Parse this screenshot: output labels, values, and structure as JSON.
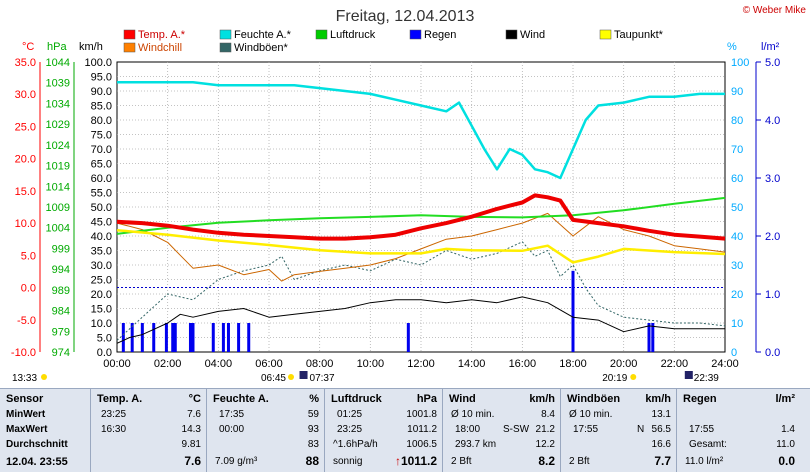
{
  "chart_data": {
    "type": "line",
    "title": "Freitag, 12.04.2013",
    "copyright": "© Weber Mike",
    "x_labels": [
      "00:00",
      "02:00",
      "04:00",
      "06:00",
      "08:00",
      "10:00",
      "12:00",
      "14:00",
      "16:00",
      "18:00",
      "20:00",
      "22:00",
      "24:00"
    ],
    "x_range": [
      0,
      24
    ],
    "axes": {
      "temp": {
        "unit": "°C",
        "range": [
          -10,
          35
        ],
        "ticks": [
          "35.0",
          "30.0",
          "25.0",
          "20.0",
          "15.0",
          "10.0",
          "5.0",
          "0.0",
          "-5.0",
          "-10.0"
        ]
      },
      "pressure": {
        "unit": "hPa",
        "range": [
          974,
          1044
        ],
        "ticks": [
          "1044",
          "1039",
          "1034",
          "1029",
          "1024",
          "1019",
          "1014",
          "1009",
          "1004",
          "999",
          "994",
          "989",
          "984",
          "979",
          "974"
        ]
      },
      "wind": {
        "unit": "km/h",
        "range": [
          0,
          100
        ],
        "ticks": [
          "100.0",
          "95.0",
          "90.0",
          "85.0",
          "80.0",
          "75.0",
          "70.0",
          "65.0",
          "60.0",
          "55.0",
          "50.0",
          "45.0",
          "40.0",
          "35.0",
          "30.0",
          "25.0",
          "20.0",
          "15.0",
          "10.0",
          "5.0",
          "0.0"
        ]
      },
      "humidity": {
        "unit": "%",
        "range": [
          0,
          100
        ],
        "ticks": [
          "100",
          "90",
          "80",
          "70",
          "60",
          "50",
          "40",
          "30",
          "20",
          "10",
          "0"
        ]
      },
      "rain": {
        "unit": "l/m²",
        "range": [
          0,
          5
        ],
        "ticks": [
          "5.0",
          "4.0",
          "3.0",
          "2.0",
          "1.0",
          "0.0"
        ]
      }
    },
    "legend": [
      {
        "name": "Temp. A.*",
        "color": "#ff0000"
      },
      {
        "name": "Feuchte A.*",
        "color": "#00e0e0"
      },
      {
        "name": "Luftdruck",
        "color": "#00cc00"
      },
      {
        "name": "Regen",
        "color": "#0000ff"
      },
      {
        "name": "Wind",
        "color": "#000000"
      },
      {
        "name": "Taupunkt*",
        "color": "#ffff00"
      },
      {
        "name": "Windchill",
        "color": "#ff8000"
      },
      {
        "name": "Windböen*",
        "color": "#336666"
      }
    ],
    "series": {
      "temperature": {
        "name": "Temp. A.*",
        "axis": "temp",
        "x": [
          0,
          1,
          2,
          3,
          4,
          5,
          6,
          7,
          8,
          9,
          10,
          11,
          12,
          13,
          14,
          15,
          16,
          16.5,
          17,
          17.5,
          18,
          19,
          20,
          21,
          22,
          23,
          24
        ],
        "y": [
          10.2,
          10.0,
          9.6,
          9.0,
          8.5,
          8.2,
          8.0,
          7.8,
          7.6,
          7.6,
          7.8,
          8.2,
          9.2,
          10.0,
          11.0,
          12.2,
          13.2,
          14.3,
          14.0,
          13.5,
          10.5,
          10.0,
          9.5,
          8.8,
          8.2,
          7.9,
          7.6
        ]
      },
      "humidity": {
        "name": "Feuchte A.*",
        "axis": "humidity",
        "x": [
          0,
          1,
          2,
          3,
          4,
          5,
          6,
          7,
          8,
          9,
          10,
          11,
          12,
          13,
          13.5,
          14,
          14.5,
          15,
          15.5,
          16,
          16.5,
          17,
          17.5,
          18,
          18.5,
          19,
          20,
          21,
          22,
          23,
          24
        ],
        "y": [
          93,
          93,
          93,
          93,
          92,
          92,
          92,
          92,
          91,
          90,
          89,
          87,
          85,
          83,
          86,
          78,
          70,
          63,
          70,
          68,
          63,
          62,
          60,
          70,
          80,
          85,
          86,
          88,
          88,
          89,
          89
        ]
      },
      "pressure": {
        "name": "Luftdruck",
        "axis": "pressure",
        "x": [
          0,
          2,
          4,
          6,
          8,
          10,
          12,
          14,
          16,
          18,
          20,
          22,
          24
        ],
        "y": [
          1002.5,
          1004.0,
          1005.2,
          1005.8,
          1006.3,
          1006.6,
          1007.0,
          1006.6,
          1006.5,
          1007.0,
          1008.2,
          1009.8,
          1011.2
        ]
      },
      "dewpoint": {
        "name": "Taupunkt*",
        "axis": "temp",
        "x": [
          0,
          2,
          4,
          6,
          8,
          10,
          12,
          13,
          14,
          16,
          17,
          18,
          19,
          20,
          22,
          24
        ],
        "y": [
          8.9,
          8.2,
          7.3,
          6.6,
          5.8,
          5.3,
          5.3,
          6.0,
          5.8,
          5.7,
          6.5,
          3.9,
          4.8,
          6.0,
          5.5,
          5.2
        ]
      },
      "windchill": {
        "name": "Windchill",
        "axis": "temp",
        "x": [
          0,
          1,
          1.5,
          2,
          2.5,
          3,
          4,
          5,
          6,
          6.5,
          7,
          8,
          9,
          10,
          11,
          12,
          13,
          14,
          15,
          16,
          17,
          18,
          19,
          20,
          21,
          22,
          23,
          24
        ],
        "y": [
          10.0,
          9.0,
          8.0,
          7.0,
          5.0,
          3.0,
          3.5,
          2.0,
          2.8,
          1.0,
          2.0,
          2.5,
          3.0,
          3.5,
          4.5,
          6.0,
          7.5,
          8.0,
          9.0,
          10.0,
          11.5,
          8.0,
          11.0,
          9.0,
          8.0,
          6.5,
          6.0,
          5.5
        ]
      },
      "wind": {
        "name": "Wind",
        "axis": "wind",
        "x": [
          0,
          0.5,
          1,
          1.5,
          2,
          2.5,
          3,
          4,
          5,
          6,
          7,
          8,
          9,
          10,
          11,
          12,
          13,
          14,
          15,
          16,
          17,
          18,
          19,
          20,
          21,
          22,
          23,
          24
        ],
        "y": [
          3,
          5,
          6,
          8,
          10,
          13,
          12,
          14,
          15,
          12,
          13,
          14,
          15,
          17,
          18,
          18,
          17,
          18,
          17,
          19,
          17,
          12,
          11,
          7,
          9,
          8,
          8,
          8
        ]
      },
      "gusts": {
        "name": "Windböen*",
        "axis": "wind",
        "x": [
          0,
          1,
          2,
          3,
          4,
          5,
          6,
          6.5,
          7,
          8,
          9,
          10,
          11,
          12,
          13,
          14,
          15,
          16,
          16.5,
          17,
          17.5,
          18,
          18.5,
          19,
          20,
          21,
          22,
          23,
          24
        ],
        "y": [
          4,
          12,
          20,
          18,
          25,
          28,
          30,
          33,
          25,
          28,
          30,
          28,
          32,
          30,
          35,
          32,
          34,
          38,
          33,
          35,
          26,
          30,
          22,
          16,
          12,
          11,
          10,
          10,
          9
        ]
      },
      "rain_bars": {
        "name": "Regen",
        "axis": "rain",
        "x": [
          0.25,
          0.6,
          1.0,
          1.45,
          1.95,
          2.2,
          2.3,
          2.9,
          3.0,
          3.8,
          4.2,
          4.4,
          4.8,
          5.2,
          11.5,
          18.0,
          21.0,
          21.15
        ],
        "y": [
          0.5,
          0.5,
          0.5,
          0.5,
          0.5,
          0.5,
          0.5,
          0.5,
          0.5,
          0.5,
          0.5,
          0.5,
          0.5,
          0.5,
          0.5,
          1.4,
          0.5,
          0.5
        ]
      }
    },
    "grid": true,
    "sun": {
      "rise": "06:45",
      "set": "20:19",
      "moon_rise": "07:37",
      "moon_set": "22:39",
      "left_label": "13:33"
    }
  },
  "table": {
    "col_sensor": {
      "header": "Sensor",
      "rows": [
        "MinWert",
        "MaxWert",
        "Durchschnitt",
        "12.04. 23:55"
      ]
    },
    "col_temp": {
      "header": "Temp. A.",
      "unit": "°C",
      "rows": [
        [
          "23:25",
          "7.6"
        ],
        [
          "16:30",
          "14.3"
        ],
        [
          "",
          "9.81"
        ],
        [
          "",
          "7.6"
        ]
      ]
    },
    "col_hum": {
      "header": "Feuchte A.",
      "unit": "%",
      "rows": [
        [
          "17:35",
          "59"
        ],
        [
          "00:00",
          "93"
        ],
        [
          "",
          "83"
        ],
        [
          "7.09 g/m³",
          "88"
        ]
      ]
    },
    "col_press": {
      "header": "Luftdruck",
      "unit": "hPa",
      "rows": [
        [
          "01:25",
          "1001.8"
        ],
        [
          "23:25",
          "1011.2"
        ],
        [
          "^1.6hPa/h",
          "1006.5"
        ],
        [
          "sonnig",
          "1011.2"
        ]
      ],
      "arrow": "↑"
    },
    "col_wind": {
      "header": "Wind",
      "unit": "km/h",
      "rows": [
        [
          "Ø 10 min.",
          "",
          "8.4"
        ],
        [
          "18:00",
          "S-SW",
          "21.2"
        ],
        [
          "293.7 km",
          "",
          "12.2"
        ],
        [
          "2 Bft",
          "",
          "8.2"
        ]
      ]
    },
    "col_gust": {
      "header": "Windböen",
      "unit": "km/h",
      "rows": [
        [
          "Ø 10 min.",
          "",
          "13.1"
        ],
        [
          "17:55",
          "N",
          "56.5"
        ],
        [
          "",
          "",
          "16.6"
        ],
        [
          "2 Bft",
          "",
          "7.7"
        ]
      ]
    },
    "col_rain": {
      "header": "Regen",
      "unit": "l/m²",
      "rows": [
        [
          "",
          "",
          ""
        ],
        [
          "17:55",
          "",
          "1.4"
        ],
        [
          "Gesamt:",
          "",
          "11.0"
        ],
        [
          "11.0 l/m²",
          "",
          "0.0"
        ]
      ]
    }
  }
}
